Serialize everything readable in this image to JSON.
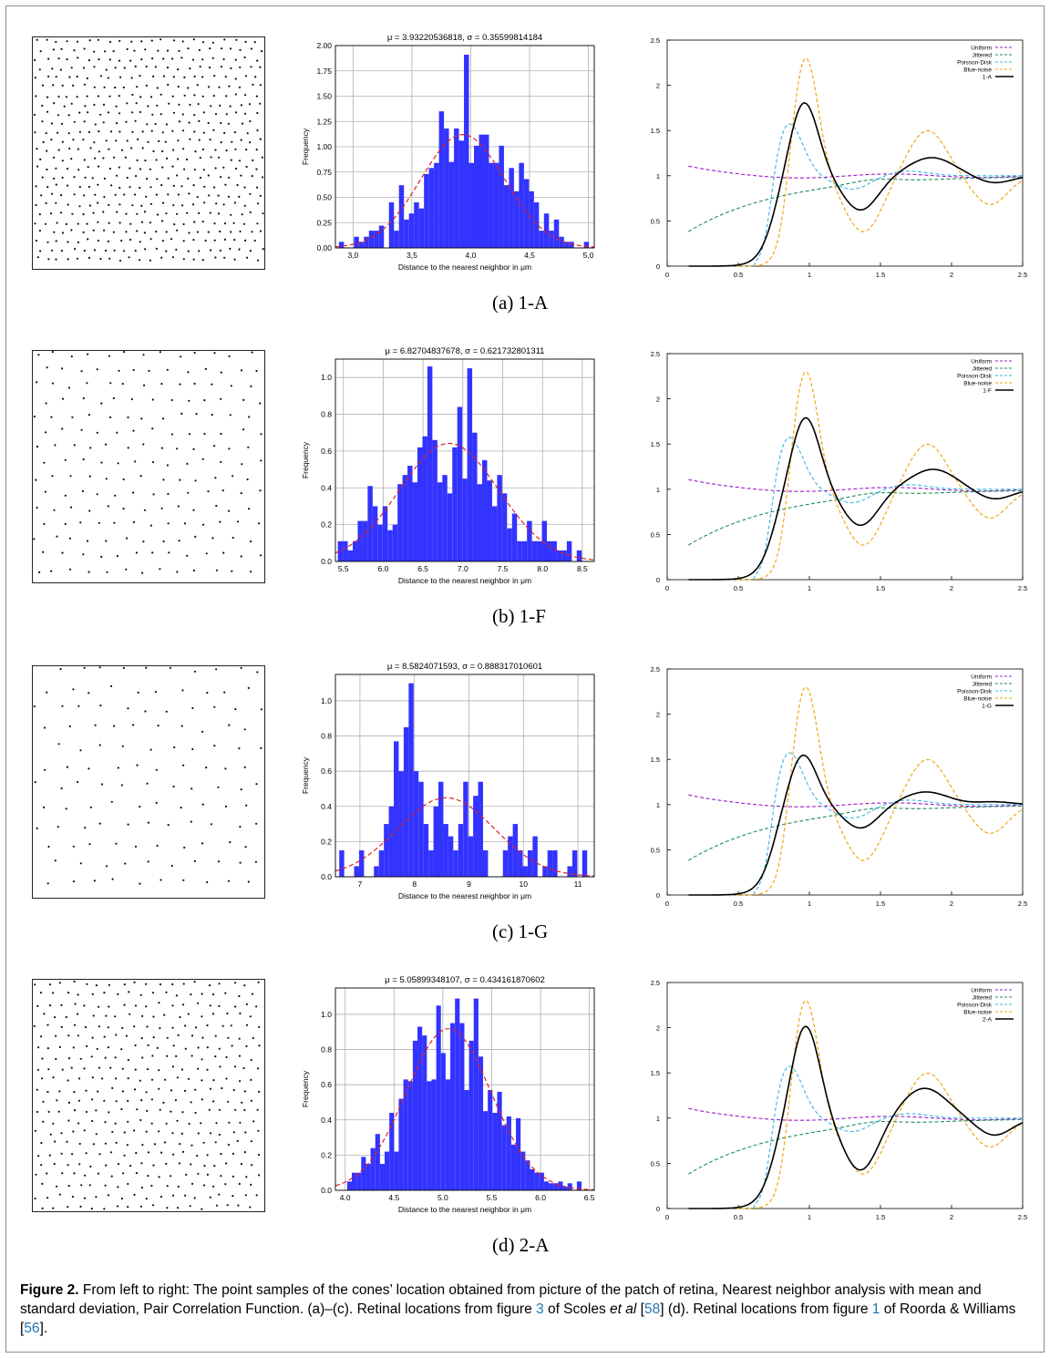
{
  "panels": [
    {
      "id": "a",
      "label": "(a)  1-A",
      "hist_title": "μ = 3.93220536818,  σ = 0.35599814184",
      "pcf_sample_label": "1-A",
      "chart_data": {
        "type": "bar",
        "title": "μ = 3.93220536818,  σ = 0.35599814184",
        "xlabel": "Distance to the nearest neighbor in μm",
        "ylabel": "Frequency",
        "xlim": [
          2.85,
          5.05
        ],
        "ylim": [
          0,
          2.0
        ],
        "xticks": [
          3.0,
          3.5,
          4.0,
          4.5,
          5.0
        ],
        "xtick_labels": [
          "3,0",
          "3,5",
          "4,0",
          "4,5",
          "5,0"
        ],
        "yticks": [
          0,
          0.25,
          0.5,
          0.75,
          1.0,
          1.25,
          1.5,
          1.75,
          2.0
        ],
        "ytick_labels": [
          "0.00",
          "0.25",
          "0.50",
          "0.75",
          "1.00",
          "1.25",
          "1.50",
          "1.75",
          "2.00"
        ],
        "bin_start": 2.88,
        "bin_width": 0.0425,
        "values": [
          0.06,
          0.0,
          0.0,
          0.11,
          0.06,
          0.11,
          0.17,
          0.17,
          0.22,
          0.0,
          0.45,
          0.17,
          0.62,
          0.28,
          0.34,
          0.45,
          0.39,
          0.73,
          0.79,
          0.84,
          1.35,
          1.18,
          0.85,
          1.18,
          1.06,
          1.91,
          0.84,
          1.01,
          1.12,
          1.12,
          0.84,
          0.84,
          1.01,
          0.62,
          0.79,
          0.56,
          0.84,
          0.68,
          0.56,
          0.45,
          0.17,
          0.34,
          0.17,
          0.28,
          0.11,
          0.06,
          0.06,
          0.0,
          0.0,
          0.06
        ],
        "fit": {
          "mu": 3.9322,
          "sigma": 0.356
        }
      }
    },
    {
      "id": "b",
      "label": "(b)  1-F",
      "hist_title": "μ = 6.82704837678,  σ = 0.621732801311",
      "pcf_sample_label": "1-F",
      "chart_data": {
        "type": "bar",
        "title": "μ = 6.82704837678,  σ = 0.621732801311",
        "xlabel": "Distance to the nearest neighbor in μm",
        "ylabel": "Frequency",
        "xlim": [
          5.4,
          8.65
        ],
        "ylim": [
          0,
          1.1
        ],
        "xticks": [
          5.5,
          6.0,
          6.5,
          7.0,
          7.5,
          8.0,
          8.5
        ],
        "xtick_labels": [
          "5.5",
          "6.0",
          "6.5",
          "7.0",
          "7.5",
          "8.0",
          "8.5"
        ],
        "yticks": [
          0,
          0.2,
          0.4,
          0.6,
          0.8,
          1.0
        ],
        "ytick_labels": [
          "0.0",
          "0.2",
          "0.4",
          "0.6",
          "0.8",
          "1.0"
        ],
        "bin_start": 5.43,
        "bin_width": 0.0625,
        "values": [
          0.11,
          0.11,
          0.06,
          0.11,
          0.22,
          0.22,
          0.41,
          0.3,
          0.2,
          0.3,
          0.17,
          0.2,
          0.42,
          0.47,
          0.52,
          0.43,
          0.62,
          0.68,
          1.06,
          0.66,
          0.43,
          0.47,
          0.37,
          0.62,
          0.84,
          0.45,
          1.05,
          0.7,
          0.42,
          0.55,
          0.44,
          0.3,
          0.47,
          0.37,
          0.18,
          0.26,
          0.11,
          0.11,
          0.22,
          0.11,
          0.11,
          0.22,
          0.11,
          0.11,
          0.06,
          0.06,
          0.11,
          0.0,
          0.06
        ],
        "fit": {
          "mu": 6.827,
          "sigma": 0.6217
        }
      }
    },
    {
      "id": "c",
      "label": "(c)  1-G",
      "hist_title": "μ = 8.5824071593,  σ = 0.888317010601",
      "pcf_sample_label": "1-G",
      "chart_data": {
        "type": "bar",
        "title": "μ = 8.5824071593,  σ = 0.888317010601",
        "xlabel": "Distance to the nearest neighbor in μm",
        "ylabel": "Frequency",
        "xlim": [
          6.55,
          11.3
        ],
        "ylim": [
          0,
          1.15
        ],
        "xticks": [
          7,
          8,
          9,
          10,
          11
        ],
        "xtick_labels": [
          "7",
          "8",
          "9",
          "10",
          "11"
        ],
        "yticks": [
          0,
          0.2,
          0.4,
          0.6,
          0.8,
          1.0
        ],
        "ytick_labels": [
          "0.0",
          "0.2",
          "0.4",
          "0.6",
          "0.8",
          "1.0"
        ],
        "bin_start": 6.62,
        "bin_width": 0.091,
        "values": [
          0.15,
          0.0,
          0.0,
          0.06,
          0.15,
          0.0,
          0.0,
          0.06,
          0.15,
          0.3,
          0.4,
          0.77,
          0.6,
          0.85,
          1.1,
          0.6,
          0.54,
          0.3,
          0.15,
          0.4,
          0.54,
          0.3,
          0.23,
          0.15,
          0.3,
          0.54,
          0.23,
          0.46,
          0.54,
          0.15,
          0.0,
          0.0,
          0.0,
          0.15,
          0.23,
          0.3,
          0.15,
          0.06,
          0.15,
          0.23,
          0.0,
          0.06,
          0.15,
          0.15,
          0.0,
          0.0,
          0.06,
          0.15,
          0.0,
          0.15
        ],
        "fit": {
          "mu": 8.5824,
          "sigma": 0.8883
        }
      }
    },
    {
      "id": "d",
      "label": "(d)  2-A",
      "hist_title": "μ = 5.05899348107,  σ = 0.434161870602",
      "pcf_sample_label": "2-A",
      "chart_data": {
        "type": "bar",
        "title": "μ = 5.05899348107,  σ = 0.434161870602",
        "xlabel": "Distance to the nearest neighbor in μm",
        "ylabel": "Frequency",
        "xlim": [
          3.9,
          6.55
        ],
        "ylim": [
          0,
          1.15
        ],
        "xticks": [
          4.0,
          4.5,
          5.0,
          5.5,
          6.0,
          6.5
        ],
        "xtick_labels": [
          "4.0",
          "4.5",
          "5.0",
          "5.5",
          "6.0",
          "6.5"
        ],
        "yticks": [
          0,
          0.2,
          0.4,
          0.6,
          0.8,
          1.0
        ],
        "ytick_labels": [
          "0.0",
          "0.2",
          "0.4",
          "0.6",
          "0.8",
          "1.0"
        ],
        "bin_start": 4.02,
        "bin_width": 0.048,
        "values": [
          0.05,
          0.1,
          0.1,
          0.19,
          0.15,
          0.24,
          0.32,
          0.15,
          0.22,
          0.44,
          0.22,
          0.52,
          0.63,
          0.62,
          0.85,
          0.93,
          0.88,
          0.62,
          0.63,
          1.05,
          0.78,
          0.63,
          0.95,
          1.09,
          0.95,
          0.57,
          0.85,
          1.09,
          0.76,
          0.45,
          0.57,
          0.44,
          0.56,
          0.37,
          0.42,
          0.26,
          0.41,
          0.22,
          0.17,
          0.12,
          0.1,
          0.1,
          0.05,
          0.04,
          0.04,
          0.05,
          0.02,
          0.04,
          0.0,
          0.05
        ],
        "fit": {
          "mu": 5.059,
          "sigma": 0.4342
        }
      }
    }
  ],
  "pcf": {
    "xlim": [
      0,
      2.5
    ],
    "ylim": [
      0,
      2.5
    ],
    "xticks": [
      0,
      0.5,
      1,
      1.5,
      2,
      2.5
    ],
    "xtick_labels": [
      "0",
      "0.5",
      "1",
      "1.5",
      "2",
      "2.5"
    ],
    "yticks": [
      0,
      0.5,
      1,
      1.5,
      2,
      2.5
    ],
    "ytick_labels": [
      "0",
      "0.5",
      "1",
      "1.5",
      "2",
      "2.5"
    ],
    "legend": [
      "Uniform",
      "Jittered",
      "Poisson-Disk",
      "Blue-noise"
    ],
    "colors": {
      "Uniform": "#9b19c9",
      "Jittered": "#1e8c5a",
      "Poisson-Disk": "#3ab5e6",
      "Blue-noise": "#f0a000",
      "sample": "#000000"
    }
  },
  "colors": {
    "bars": "#3333ff",
    "fit": "#e02020",
    "grid": "#b0b0b0"
  },
  "caption": {
    "figure_label": "Figure 2.",
    "text_1": " From left to right: The point samples of the cones’ location obtained from picture of the patch of retina, Nearest neighbor analysis with mean and standard deviation, Pair Correlation Function. (a)–(c). Retinal locations from figure ",
    "ref_fig3": "3",
    "text_2": " of Scoles ",
    "etal": "et al",
    "text_3": " [",
    "ref_58": "58",
    "text_4": "] (d). Retinal locations from figure ",
    "ref_fig1": "1",
    "text_5": " of Roorda & Williams [",
    "ref_56": "56",
    "text_6": "]."
  }
}
